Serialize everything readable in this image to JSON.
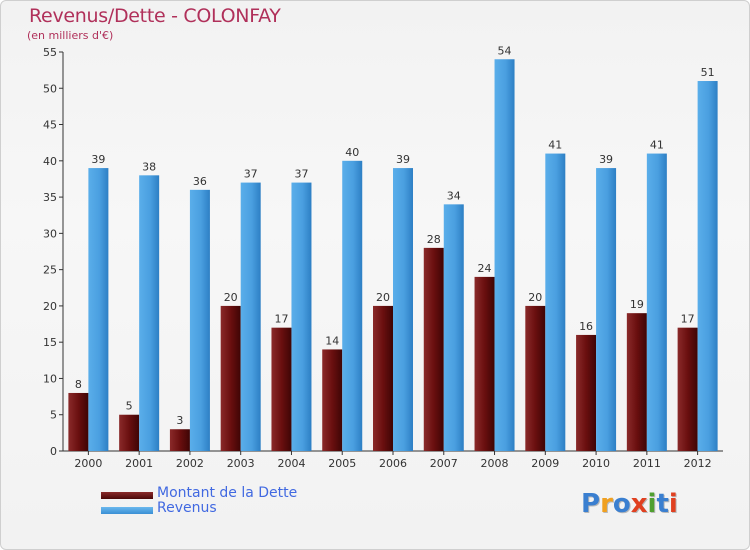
{
  "title": "Revenus/Dette - COLONFAY",
  "subtitle": "(en milliers d'€)",
  "colors": {
    "dette": "#7a1414",
    "revenus": "#4ea2e0",
    "title": "#b0305a",
    "legend_text": "#4169e1"
  },
  "legend": {
    "dette_label": "Montant de la Dette",
    "revenus_label": "Revenus"
  },
  "logo": {
    "text": "Proxiti",
    "letter_colors": [
      "#3a7fd0",
      "#f0a020",
      "#3a7fd0",
      "#e04020",
      "#50a030",
      "#3a7fd0",
      "#e04020"
    ]
  },
  "chart_data": {
    "type": "bar",
    "categories": [
      "2000",
      "2001",
      "2002",
      "2003",
      "2004",
      "2005",
      "2006",
      "2007",
      "2008",
      "2009",
      "2010",
      "2011",
      "2012"
    ],
    "series": [
      {
        "name": "Montant de la Dette",
        "values": [
          8,
          5,
          3,
          20,
          17,
          14,
          20,
          28,
          24,
          20,
          16,
          19,
          17
        ]
      },
      {
        "name": "Revenus",
        "values": [
          39,
          38,
          36,
          37,
          37,
          40,
          39,
          34,
          54,
          41,
          39,
          41,
          51
        ]
      }
    ],
    "ylim": [
      0,
      55
    ],
    "yticks": [
      0,
      5,
      10,
      15,
      20,
      25,
      30,
      35,
      40,
      45,
      50,
      55
    ],
    "grid": false,
    "legend_position": "bottom-left"
  }
}
